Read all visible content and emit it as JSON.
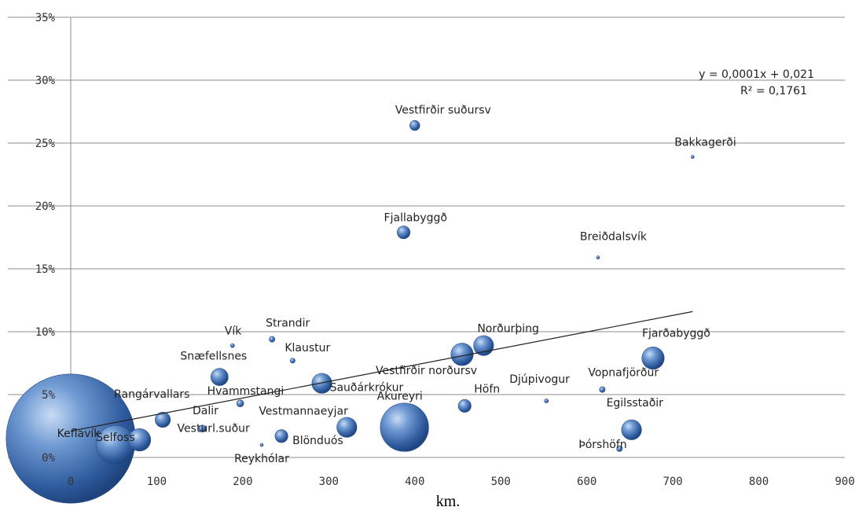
{
  "chart_data": {
    "type": "scatter",
    "subtype": "bubble",
    "title": "",
    "xlabel": "km.",
    "ylabel": "",
    "xlim": [
      0,
      900
    ],
    "ylim": [
      0,
      35
    ],
    "x_ticks": [
      "0",
      "100",
      "200",
      "300",
      "400",
      "500",
      "600",
      "700",
      "800",
      "900"
    ],
    "y_ticks": [
      "0%",
      "5%",
      "10%",
      "15%",
      "20%",
      "25%",
      "30%",
      "35%"
    ],
    "grid": "horizontal",
    "bubble_color": "#3f6fb3",
    "points": [
      {
        "label": "Keflavík",
        "x": 0,
        "y": 1.5,
        "size": 1000
      },
      {
        "label": "Selfoss",
        "x": 52,
        "y": 1.0,
        "size": 90
      },
      {
        "label": "Vesturl.suður",
        "x": 80,
        "y": 1.4,
        "size": 30
      },
      {
        "label": "Rangárvallars",
        "x": 107,
        "y": 3.0,
        "size": 14
      },
      {
        "label": "Dalir",
        "x": 153,
        "y": 2.3,
        "size": 3
      },
      {
        "label": "Reykhólar",
        "x": 222,
        "y": 1.0,
        "size": 0.3
      },
      {
        "label": "Snæfellsnes",
        "x": 173,
        "y": 6.4,
        "size": 18
      },
      {
        "label": "Vík",
        "x": 188,
        "y": 8.9,
        "size": 1
      },
      {
        "label": "Hvammstangi",
        "x": 197,
        "y": 4.3,
        "size": 3
      },
      {
        "label": "Strandir",
        "x": 234,
        "y": 9.4,
        "size": 2
      },
      {
        "label": "Blönduós",
        "x": 245,
        "y": 1.7,
        "size": 10
      },
      {
        "label": "Klaustur",
        "x": 258,
        "y": 7.7,
        "size": 1.5
      },
      {
        "label": "Sauðárkrókur",
        "x": 292,
        "y": 5.9,
        "size": 24
      },
      {
        "label": "Vestmannaeyjar",
        "x": 321,
        "y": 2.4,
        "size": 24
      },
      {
        "label": "Akureyri",
        "x": 388,
        "y": 2.4,
        "size": 140
      },
      {
        "label": "Fjallabyggð",
        "x": 387,
        "y": 17.9,
        "size": 10
      },
      {
        "label": "Vestfirðir suðursv",
        "x": 400,
        "y": 26.4,
        "size": 6
      },
      {
        "label": "Vestfirðir norðursv",
        "x": 455,
        "y": 8.2,
        "size": 30
      },
      {
        "label": "Norðurþing",
        "x": 480,
        "y": 8.9,
        "size": 24
      },
      {
        "label": "Höfn",
        "x": 458,
        "y": 4.1,
        "size": 10
      },
      {
        "label": "Djúpivogur",
        "x": 553,
        "y": 4.5,
        "size": 1
      },
      {
        "label": "Breiðdalsvík",
        "x": 613,
        "y": 15.9,
        "size": 0.3
      },
      {
        "label": "Vopnafjörður",
        "x": 618,
        "y": 5.4,
        "size": 2
      },
      {
        "label": "Bakkagerði",
        "x": 723,
        "y": 23.9,
        "size": 0.3
      },
      {
        "label": "Þórshöfn",
        "x": 638,
        "y": 0.7,
        "size": 2
      },
      {
        "label": "Egilsstaðir",
        "x": 652,
        "y": 2.2,
        "size": 24
      },
      {
        "label": "Fjarðabyggð",
        "x": 677,
        "y": 7.9,
        "size": 30
      }
    ],
    "trendline": {
      "type": "linear",
      "x_range": [
        0,
        723
      ],
      "y_start": 2.1,
      "y_end": 11.6,
      "equation": "y = 0,0001x + 0,021",
      "r_squared": "R² = 0,1761"
    }
  }
}
